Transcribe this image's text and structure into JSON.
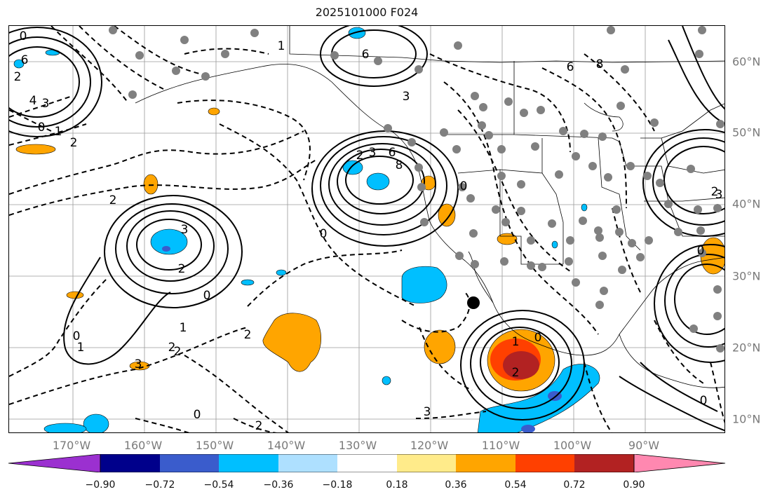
{
  "title": "2025101000 F024",
  "lon_labels": [
    "170°W",
    "160°W",
    "150°W",
    "140°W",
    "130°W",
    "120°W",
    "110°W",
    "100°W",
    "90°W"
  ],
  "lat_labels": [
    "60°N",
    "50°N",
    "40°N",
    "30°N",
    "20°N",
    "10°N"
  ],
  "colorbar": {
    "ticks": [
      "−0.90",
      "−0.72",
      "−0.54",
      "−0.36",
      "−0.18",
      "0.18",
      "0.36",
      "0.54",
      "0.72",
      "0.90"
    ],
    "colors": [
      "#9b30d0",
      "#00008b",
      "#3a5ccc",
      "#00bfff",
      "#aee0ff",
      "#ffffff",
      "#ffeb8a",
      "#ffa500",
      "#ff4000",
      "#b22222",
      "#ff88b0"
    ]
  },
  "contour_labels": [
    "0",
    "2",
    "6",
    "4",
    "3",
    "0",
    "1",
    "2",
    "1",
    "6",
    "3",
    "2",
    "3",
    "6",
    "8",
    "0",
    "3",
    "2",
    "2",
    "3",
    "0",
    "1",
    "2",
    "2",
    "1",
    "0",
    "2",
    "0",
    "0",
    "2",
    "3",
    "0",
    "1",
    "2",
    "0",
    "0",
    "3",
    "2",
    "6",
    "8"
  ],
  "colors": {
    "positive_orange": "#ffa500",
    "positive_red": "#ff4000",
    "positive_darkred": "#b22222",
    "negative_cyan": "#00bfff",
    "negative_blue": "#3a5ccc",
    "grid": "#9a9a9a",
    "contour": "#000000"
  }
}
